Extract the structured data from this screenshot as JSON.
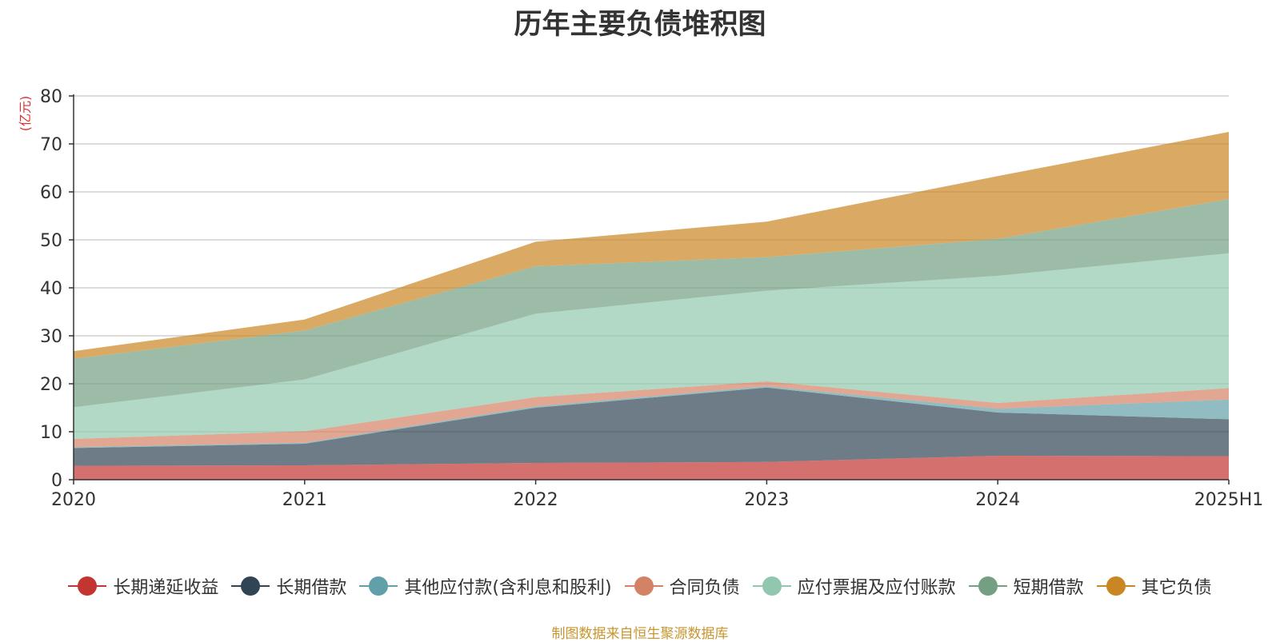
{
  "chart_data": {
    "type": "area",
    "title": "历年主要负债堆积图",
    "unit_label": "(亿元)",
    "categories": [
      "2020",
      "2021",
      "2022",
      "2023",
      "2024",
      "2025H1"
    ],
    "ylim": [
      0,
      80
    ],
    "y_ticks": [
      0,
      10,
      20,
      30,
      40,
      50,
      60,
      70,
      80
    ],
    "grid": true,
    "stacked": true,
    "legend_position": "bottom",
    "series": [
      {
        "name": "长期递延收益",
        "values": [
          2.9,
          3.0,
          3.5,
          3.7,
          5.0,
          4.9
        ],
        "color": "#c23531"
      },
      {
        "name": "长期借款",
        "values": [
          3.7,
          4.5,
          11.5,
          15.5,
          9.0,
          7.7
        ],
        "color": "#2f4554"
      },
      {
        "name": "其他应付款(含利息和股利)",
        "values": [
          0.2,
          0.2,
          0.3,
          0.3,
          0.8,
          4.1
        ],
        "color": "#61a0a8"
      },
      {
        "name": "合同负债",
        "values": [
          1.7,
          2.4,
          1.9,
          1.0,
          1.2,
          2.4
        ],
        "color": "#d48265"
      },
      {
        "name": "应付票据及应付账款",
        "values": [
          6.6,
          10.8,
          17.4,
          18.9,
          26.5,
          28.1
        ],
        "color": "#91c7ae"
      },
      {
        "name": "短期借款",
        "values": [
          10.1,
          10.2,
          9.9,
          7.0,
          7.7,
          11.3
        ],
        "color": "#749f83"
      },
      {
        "name": "其它负债",
        "values": [
          1.6,
          2.3,
          5.1,
          7.4,
          13.1,
          14.0
        ],
        "color": "#ca8622"
      }
    ]
  },
  "footer": {
    "source": "制图数据来自恒生聚源数据库"
  }
}
